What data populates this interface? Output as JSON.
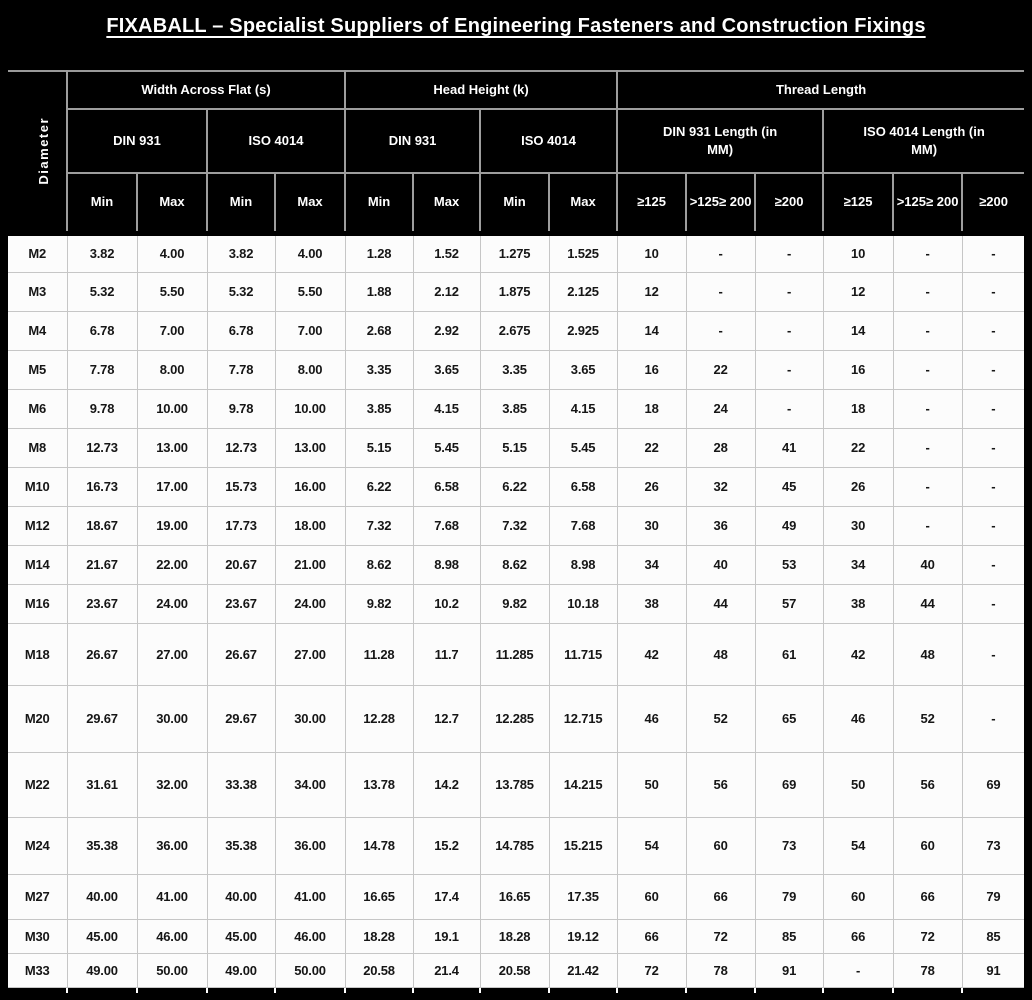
{
  "title": "FIXABALL – Specialist Suppliers of Engineering Fasteners and Construction  Fixings",
  "colors": {
    "header_bg": "#000000",
    "header_text": "#ffffff",
    "header_grid": "#9e9e9e",
    "body_bg": "#fcfcfc",
    "body_text": "#161616",
    "body_grid": "#c6c6c6"
  },
  "table": {
    "diameter_header": "Diameter",
    "group_headers": [
      "Width Across Flat  (s)",
      "Head Height (k)",
      "Thread Length"
    ],
    "standard_headers": [
      "DIN 931",
      "ISO 4014",
      "DIN 931",
      "ISO 4014",
      "DIN 931 Length (in\nMM)",
      "ISO 4014 Length (in\nMM)"
    ],
    "column_headers": [
      "Min",
      "Max",
      "Min",
      "Max",
      "Min",
      "Max",
      "Min",
      "Max",
      "≥125",
      ">125≥ 200",
      "≥200",
      "≥125",
      ">125≥ 200",
      "≥200"
    ],
    "rows": [
      {
        "diameter": "M2",
        "values": [
          "3.82",
          "4.00",
          "3.82",
          "4.00",
          "1.28",
          "1.52",
          "1.275",
          "1.525",
          "10",
          "-",
          "-",
          "10",
          "-",
          "-"
        ]
      },
      {
        "diameter": "M3",
        "values": [
          "5.32",
          "5.50",
          "5.32",
          "5.50",
          "1.88",
          "2.12",
          "1.875",
          "2.125",
          "12",
          "-",
          "-",
          "12",
          "-",
          "-"
        ]
      },
      {
        "diameter": "M4",
        "values": [
          "6.78",
          "7.00",
          "6.78",
          "7.00",
          "2.68",
          "2.92",
          "2.675",
          "2.925",
          "14",
          "-",
          "-",
          "14",
          "-",
          "-"
        ]
      },
      {
        "diameter": "M5",
        "values": [
          "7.78",
          "8.00",
          "7.78",
          "8.00",
          "3.35",
          "3.65",
          "3.35",
          "3.65",
          "16",
          "22",
          "-",
          "16",
          "-",
          "-"
        ]
      },
      {
        "diameter": "M6",
        "values": [
          "9.78",
          "10.00",
          "9.78",
          "10.00",
          "3.85",
          "4.15",
          "3.85",
          "4.15",
          "18",
          "24",
          "-",
          "18",
          "-",
          "-"
        ]
      },
      {
        "diameter": "M8",
        "values": [
          "12.73",
          "13.00",
          "12.73",
          "13.00",
          "5.15",
          "5.45",
          "5.15",
          "5.45",
          "22",
          "28",
          "41",
          "22",
          "-",
          "-"
        ]
      },
      {
        "diameter": "M10",
        "values": [
          "16.73",
          "17.00",
          "15.73",
          "16.00",
          "6.22",
          "6.58",
          "6.22",
          "6.58",
          "26",
          "32",
          "45",
          "26",
          "-",
          "-"
        ]
      },
      {
        "diameter": "M12",
        "values": [
          "18.67",
          "19.00",
          "17.73",
          "18.00",
          "7.32",
          "7.68",
          "7.32",
          "7.68",
          "30",
          "36",
          "49",
          "30",
          "-",
          "-"
        ]
      },
      {
        "diameter": "M14",
        "values": [
          "21.67",
          "22.00",
          "20.67",
          "21.00",
          "8.62",
          "8.98",
          "8.62",
          "8.98",
          "34",
          "40",
          "53",
          "34",
          "40",
          "-"
        ]
      },
      {
        "diameter": "M16",
        "values": [
          "23.67",
          "24.00",
          "23.67",
          "24.00",
          "9.82",
          "10.2",
          "9.82",
          "10.18",
          "38",
          "44",
          "57",
          "38",
          "44",
          "-"
        ]
      },
      {
        "diameter": "M18",
        "values": [
          "26.67",
          "27.00",
          "26.67",
          "27.00",
          "11.28",
          "11.7",
          "11.285",
          "11.715",
          "42",
          "48",
          "61",
          "42",
          "48",
          "-"
        ]
      },
      {
        "diameter": "M20",
        "values": [
          "29.67",
          "30.00",
          "29.67",
          "30.00",
          "12.28",
          "12.7",
          "12.285",
          "12.715",
          "46",
          "52",
          "65",
          "46",
          "52",
          "-"
        ]
      },
      {
        "diameter": "M22",
        "values": [
          "31.61",
          "32.00",
          "33.38",
          "34.00",
          "13.78",
          "14.2",
          "13.785",
          "14.215",
          "50",
          "56",
          "69",
          "50",
          "56",
          "69"
        ]
      },
      {
        "diameter": "M24",
        "values": [
          "35.38",
          "36.00",
          "35.38",
          "36.00",
          "14.78",
          "15.2",
          "14.785",
          "15.215",
          "54",
          "60",
          "73",
          "54",
          "60",
          "73"
        ]
      },
      {
        "diameter": "M27",
        "values": [
          "40.00",
          "41.00",
          "40.00",
          "41.00",
          "16.65",
          "17.4",
          "16.65",
          "17.35",
          "60",
          "66",
          "79",
          "60",
          "66",
          "79"
        ]
      },
      {
        "diameter": "M30",
        "values": [
          "45.00",
          "46.00",
          "45.00",
          "46.00",
          "18.28",
          "19.1",
          "18.28",
          "19.12",
          "66",
          "72",
          "85",
          "66",
          "72",
          "85"
        ]
      },
      {
        "diameter": "M33",
        "values": [
          "49.00",
          "50.00",
          "49.00",
          "50.00",
          "20.58",
          "21.4",
          "20.58",
          "21.42",
          "72",
          "78",
          "91",
          "-",
          "78",
          "91"
        ]
      }
    ]
  }
}
